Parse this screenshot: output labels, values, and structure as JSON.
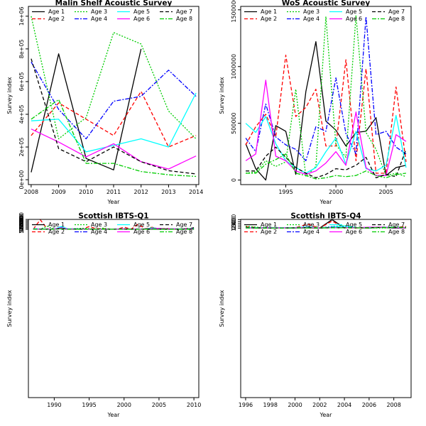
{
  "figure": {
    "colors": {
      "Age 1": "#000000",
      "Age 2": "#ff0000",
      "Age 3": "#00cd00",
      "Age 4": "#0000ff",
      "Age 5": "#00ffff",
      "Age 6": "#ff00ff",
      "Age 7": "#000000",
      "Age 8": "#00cd00"
    },
    "dashes": {
      "Age 1": "",
      "Age 2": "5,3",
      "Age 3": "2,2",
      "Age 4": "6,2,2,2",
      "Age 5": "",
      "Age 6": "",
      "Age 7": "5,3",
      "Age 8": "6,2,2,2"
    }
  },
  "chart_data": [
    {
      "type": "line",
      "title": "Malin Shelf Acoustic Survey",
      "xlabel": "Year",
      "ylabel": "Survey index",
      "xlim": [
        2007.9,
        2014.1
      ],
      "ylim": [
        -30000,
        1060000
      ],
      "xticks": [
        2008,
        2009,
        2010,
        2011,
        2012,
        2013,
        2014
      ],
      "xtick_labels": [
        "2008",
        "2009",
        "2010",
        "2011",
        "2012",
        "2013",
        "2014"
      ],
      "yticks": [
        0,
        200000,
        400000,
        600000,
        800000,
        1000000
      ],
      "ytick_labels": [
        "0e+00",
        "2e+05",
        "4e+05",
        "6e+05",
        "8e+05",
        "1e+06"
      ],
      "legend_position": "top",
      "x": [
        2008,
        2009,
        2010,
        2011,
        2012,
        2013,
        2014
      ],
      "series": [
        {
          "name": "Age 1",
          "values": [
            45000,
            770000,
            130000,
            60000,
            800000,
            null,
            null
          ]
        },
        {
          "name": "Age 2",
          "values": [
            270000,
            470000,
            370000,
            270000,
            540000,
            200000,
            270000
          ]
        },
        {
          "name": "Age 3",
          "values": [
            1000000,
            250000,
            380000,
            900000,
            830000,
            420000,
            250000
          ]
        },
        {
          "name": "Age 4",
          "values": [
            720000,
            430000,
            250000,
            480000,
            510000,
            670000,
            510000
          ]
        },
        {
          "name": "Age 5",
          "values": [
            360000,
            370000,
            170000,
            210000,
            250000,
            200000,
            530000
          ]
        },
        {
          "name": "Age 6",
          "values": [
            310000,
            230000,
            140000,
            220000,
            110000,
            65000,
            145000
          ]
        },
        {
          "name": "Age 7",
          "values": [
            740000,
            190000,
            110000,
            200000,
            110000,
            55000,
            35000
          ]
        },
        {
          "name": "Age 8",
          "values": [
            370000,
            490000,
            100000,
            100000,
            50000,
            30000,
            20000
          ]
        }
      ]
    },
    {
      "type": "line",
      "title": "WoS Acoustic Survey",
      "xlabel": "Year",
      "ylabel": "Survey index",
      "xlim": [
        1990.5,
        2007.5
      ],
      "ylim": [
        -40000,
        1530000
      ],
      "xticks": [
        1995,
        2000,
        2005
      ],
      "xtick_labels": [
        "1995",
        "2000",
        "2005"
      ],
      "yticks": [
        0,
        500000,
        1000000,
        1500000
      ],
      "ytick_labels": [
        "0",
        "500000",
        "1000000",
        "1500000"
      ],
      "legend_position": "top",
      "x": [
        1991,
        1992,
        1993,
        1994,
        1995,
        1996,
        1997,
        1998,
        1999,
        2000,
        2001,
        2002,
        2003,
        2004,
        2005,
        2006,
        2007
      ],
      "series": [
        {
          "name": "Age 1",
          "values": [
            320000,
            100000,
            0,
            480000,
            430000,
            50000,
            780000,
            1220000,
            520000,
            440000,
            300000,
            420000,
            430000,
            550000,
            40000,
            110000,
            130000
          ]
        },
        {
          "name": "Age 2",
          "values": [
            310000,
            470000,
            580000,
            380000,
            1100000,
            560000,
            640000,
            800000,
            300000,
            300000,
            1060000,
            170000,
            980000,
            60000,
            60000,
            820000,
            160000
          ]
        },
        {
          "name": "Age 3",
          "values": [
            60000,
            70000,
            170000,
            120000,
            160000,
            800000,
            30000,
            120000,
            1440000,
            310000,
            200000,
            1450000,
            420000,
            270000,
            40000,
            60000,
            30000
          ]
        },
        {
          "name": "Age 4",
          "values": [
            370000,
            250000,
            670000,
            380000,
            310000,
            270000,
            170000,
            470000,
            430000,
            900000,
            410000,
            230000,
            1440000,
            400000,
            430000,
            290000,
            230000
          ]
        },
        {
          "name": "Age 5",
          "values": [
            500000,
            420000,
            560000,
            320000,
            170000,
            110000,
            60000,
            110000,
            250000,
            370000,
            140000,
            430000,
            100000,
            80000,
            130000,
            570000,
            110000
          ]
        },
        {
          "name": "Age 6",
          "values": [
            170000,
            230000,
            880000,
            210000,
            170000,
            80000,
            50000,
            80000,
            150000,
            250000,
            130000,
            600000,
            110000,
            40000,
            40000,
            400000,
            340000
          ]
        },
        {
          "name": "Age 7",
          "values": [
            80000,
            80000,
            210000,
            290000,
            200000,
            110000,
            60000,
            20000,
            50000,
            100000,
            90000,
            130000,
            200000,
            20000,
            50000,
            30000,
            270000
          ]
        },
        {
          "name": "Age 8",
          "values": [
            60000,
            60000,
            140000,
            180000,
            230000,
            60000,
            40000,
            10000,
            20000,
            40000,
            30000,
            40000,
            80000,
            40000,
            20000,
            50000,
            60000
          ]
        }
      ]
    },
    {
      "type": "line",
      "title": "Scottish IBTS-Q1",
      "xlabel": "Year",
      "ylabel": "Survey index",
      "xlim": [
        1986.3,
        2010.7
      ],
      "ylim": [
        -60000,
        3520
      ],
      "xticks": [
        1990,
        1995,
        2000,
        2005,
        2010
      ],
      "xtick_labels": [
        "1990",
        "1995",
        "2000",
        "2005",
        "2010"
      ],
      "yticks": [
        0,
        500,
        1000,
        1500,
        2000,
        2500,
        3000,
        3500
      ],
      "ytick_labels": [
        "0",
        "500",
        "1000",
        "1500",
        "2000",
        "2500",
        "3000",
        "3500"
      ],
      "legend_position": "top",
      "x": [
        1987,
        1988,
        1989,
        1990,
        1991,
        1992,
        1993,
        1994,
        1995,
        1996,
        1997,
        1998,
        1999,
        2000,
        2001,
        2002,
        2003,
        2004,
        2005,
        2006,
        2007,
        2008,
        2009,
        2010
      ],
      "series": [
        {
          "name": "Age 1",
          "values": [
            30,
            20,
            40,
            50,
            250,
            30,
            50,
            30,
            20,
            20,
            10,
            0,
            20,
            100,
            50,
            60,
            20,
            50,
            60,
            0,
            60,
            50,
            0,
            580
          ]
        },
        {
          "name": "Age 2",
          "values": [
            30,
            3400,
            100,
            80,
            480,
            60,
            100,
            20,
            960,
            200,
            220,
            20,
            40,
            740,
            20,
            1780,
            200,
            700,
            80,
            350,
            20,
            60,
            320,
            30
          ]
        },
        {
          "name": "Age 3",
          "values": [
            20,
            20,
            1080,
            30,
            900,
            20,
            200,
            350,
            200,
            60,
            400,
            20,
            20,
            30,
            20,
            20,
            20,
            650,
            20,
            60,
            20,
            20,
            350,
            200
          ]
        },
        {
          "name": "Age 4",
          "values": [
            150,
            100,
            100,
            100,
            600,
            100,
            100,
            100,
            50,
            50,
            50,
            50,
            100,
            150,
            80,
            100,
            100,
            400,
            300,
            150,
            100,
            50,
            200,
            100
          ]
        },
        {
          "name": "Age 5",
          "values": [
            180,
            50,
            50,
            30,
            1000,
            100,
            120,
            30,
            40,
            30,
            30,
            30,
            20,
            20,
            30,
            30,
            50,
            450,
            200,
            150,
            200,
            100,
            100,
            150
          ]
        },
        {
          "name": "Age 6",
          "values": [
            20,
            20,
            40,
            50,
            550,
            60,
            80,
            40,
            50,
            30,
            30,
            30,
            30,
            50,
            30,
            30,
            50,
            200,
            300,
            150,
            150,
            50,
            150,
            80
          ]
        },
        {
          "name": "Age 7",
          "values": [
            10,
            10,
            10,
            10,
            300,
            10,
            100,
            10,
            30,
            10,
            20,
            20,
            10,
            20,
            20,
            10,
            30,
            100,
            80,
            50,
            40,
            30,
            40,
            30
          ]
        },
        {
          "name": "Age 8",
          "values": [
            5,
            5,
            5,
            5,
            200,
            5,
            30,
            5,
            20,
            5,
            10,
            20,
            5,
            10,
            20,
            10,
            20,
            50,
            100,
            100,
            50,
            20,
            60,
            40
          ]
        }
      ]
    },
    {
      "type": "line",
      "title": "Scottish IBTS-Q4",
      "xlabel": "Year",
      "ylabel": "Survey index",
      "xlim": [
        1995.6,
        2009.4
      ],
      "ylim": [
        -8000,
        410
      ],
      "xticks": [
        1996,
        1998,
        2000,
        2002,
        2004,
        2006,
        2008
      ],
      "xtick_labels": [
        "1996",
        "1998",
        "2000",
        "2002",
        "2004",
        "2006",
        "2008"
      ],
      "yticks": [
        0,
        100,
        200,
        300,
        400
      ],
      "ytick_labels": [
        "0",
        "100",
        "200",
        "300",
        "400"
      ],
      "legend_position": "top",
      "x": [
        1996,
        1997,
        1998,
        1999,
        2000,
        2001,
        2002,
        2003,
        2004,
        2005,
        2006,
        2007,
        2008,
        2009
      ],
      "series": [
        {
          "name": "Age 1",
          "values": [
            10,
            5,
            3,
            8,
            5,
            10,
            2,
            400,
            10,
            15,
            0,
            38,
            0,
            5
          ]
        },
        {
          "name": "Age 2",
          "values": [
            65,
            25,
            15,
            10,
            15,
            185,
            0,
            330,
            8,
            5,
            5,
            40,
            20,
            75
          ]
        },
        {
          "name": "Age 3",
          "values": [
            90,
            35,
            25,
            20,
            10,
            25,
            10,
            70,
            115,
            10,
            5,
            5,
            10,
            10
          ]
        },
        {
          "name": "Age 4",
          "values": [
            25,
            15,
            20,
            15,
            10,
            20,
            5,
            60,
            80,
            15,
            25,
            35,
            25,
            15
          ]
        },
        {
          "name": "Age 5",
          "values": [
            15,
            20,
            25,
            15,
            20,
            60,
            5,
            40,
            100,
            20,
            15,
            40,
            40,
            15
          ]
        },
        {
          "name": "Age 6",
          "values": [
            5,
            10,
            15,
            10,
            10,
            30,
            5,
            20,
            15,
            15,
            40,
            40,
            20,
            10
          ]
        },
        {
          "name": "Age 7",
          "values": [
            10,
            10,
            5,
            5,
            10,
            15,
            5,
            15,
            15,
            10,
            20,
            30,
            35,
            35
          ]
        },
        {
          "name": "Age 8",
          "values": [
            5,
            5,
            5,
            5,
            5,
            10,
            5,
            10,
            10,
            10,
            10,
            15,
            35,
            25
          ]
        }
      ]
    }
  ]
}
